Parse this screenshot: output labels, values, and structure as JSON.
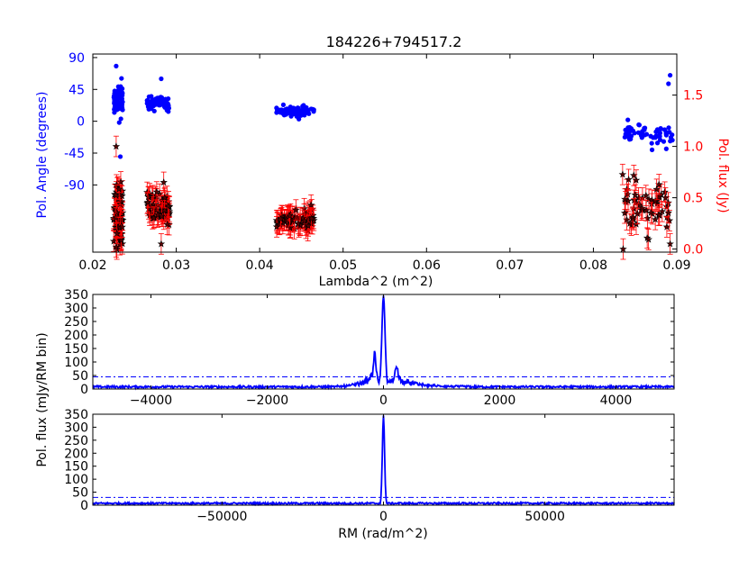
{
  "colors": {
    "pa": "#0000ff",
    "flux": "#ff0000",
    "star": "#000000",
    "spec": "#0000ff",
    "threshold": "#0000ff"
  },
  "chart_data": [
    {
      "type": "scatter",
      "title": "184226+794517.2",
      "xlabel": "Lambda^2 (m^2)",
      "ylabel": "Pol. Angle (degrees)",
      "ylabel_right": "Pol. flux (Jy)",
      "xlim": [
        0.02,
        0.09
      ],
      "ylim": [
        -185,
        95
      ],
      "ylim_right": [
        -0.03,
        1.9
      ],
      "x_ticks": [
        "0.02",
        "0.03",
        "0.04",
        "0.05",
        "0.06",
        "0.07",
        "0.08",
        "0.09"
      ],
      "y_ticks_left": [
        "90",
        "45",
        "0",
        "-45",
        "-90"
      ],
      "y_ticks_right": [
        "0.0",
        "0.5",
        "1.0",
        "1.5"
      ],
      "series": [
        {
          "marker": "dot",
          "clusters": [
            {
              "x_range": [
                0.0225,
                0.0236
              ],
              "y_center": 30,
              "y_spread": 20,
              "n": 70
            },
            {
              "x_range": [
                0.0265,
                0.0292
              ],
              "y_center": 25,
              "y_spread": 8,
              "n": 70
            },
            {
              "x_range": [
                0.042,
                0.0465
              ],
              "y_center": 14,
              "y_spread": 7,
              "n": 80
            },
            {
              "x_range": [
                0.0835,
                0.0895
              ],
              "y_center": -20,
              "y_spread": 13,
              "n": 60
            }
          ],
          "points": [
            [
              0.0228,
              78
            ],
            [
              0.0282,
              60
            ],
            [
              0.0233,
              -50
            ],
            [
              0.0892,
              65
            ],
            [
              0.089,
              53
            ],
            [
              0.0447,
              3
            ]
          ]
        },
        {
          "marker": "star-errorbar",
          "y_axis": "right",
          "clusters": [
            {
              "x_range": [
                0.0225,
                0.0236
              ],
              "y_center": 0.35,
              "y_spread": 0.28,
              "n": 70,
              "err": 0.1
            },
            {
              "x_range": [
                0.0265,
                0.0292
              ],
              "y_center": 0.4,
              "y_spread": 0.12,
              "n": 70,
              "err": 0.1
            },
            {
              "x_range": [
                0.042,
                0.0465
              ],
              "y_center": 0.29,
              "y_spread": 0.08,
              "n": 80,
              "err": 0.1
            },
            {
              "x_range": [
                0.0835,
                0.0895
              ],
              "y_center": 0.4,
              "y_spread": 0.2,
              "n": 60,
              "err": 0.08
            }
          ],
          "points": [
            [
              0.0228,
              1.0
            ],
            [
              0.0228,
              0.02
            ],
            [
              0.0285,
              0.65
            ],
            [
              0.0282,
              0.05
            ],
            [
              0.0892,
              0.05
            ]
          ]
        }
      ]
    },
    {
      "type": "line",
      "xlabel": "",
      "xlim": [
        -5000,
        5000
      ],
      "ylim": [
        0,
        350
      ],
      "x_ticks": [
        "−4000",
        "−2000",
        "0",
        "2000",
        "4000"
      ],
      "y_ticks": [
        "350",
        "300",
        "250",
        "200",
        "150",
        "100",
        "50",
        "0"
      ],
      "threshold": 45,
      "peak": {
        "x": 0,
        "y": 345
      },
      "sidelobes": [
        {
          "x": -150,
          "y": 95
        },
        {
          "x": 220,
          "y": 60
        }
      ]
    },
    {
      "type": "line",
      "xlabel": "RM (rad/m^2)",
      "shared_ylabel": "Pol. flux (mJy/RM bin)",
      "xlim": [
        -90000,
        90000
      ],
      "ylim": [
        0,
        350
      ],
      "x_ticks": [
        "−50000",
        "0",
        "50000"
      ],
      "y_ticks": [
        "350",
        "300",
        "250",
        "200",
        "150",
        "100",
        "50",
        "0"
      ],
      "threshold": 30,
      "peak": {
        "x": 0,
        "y": 345
      }
    }
  ]
}
